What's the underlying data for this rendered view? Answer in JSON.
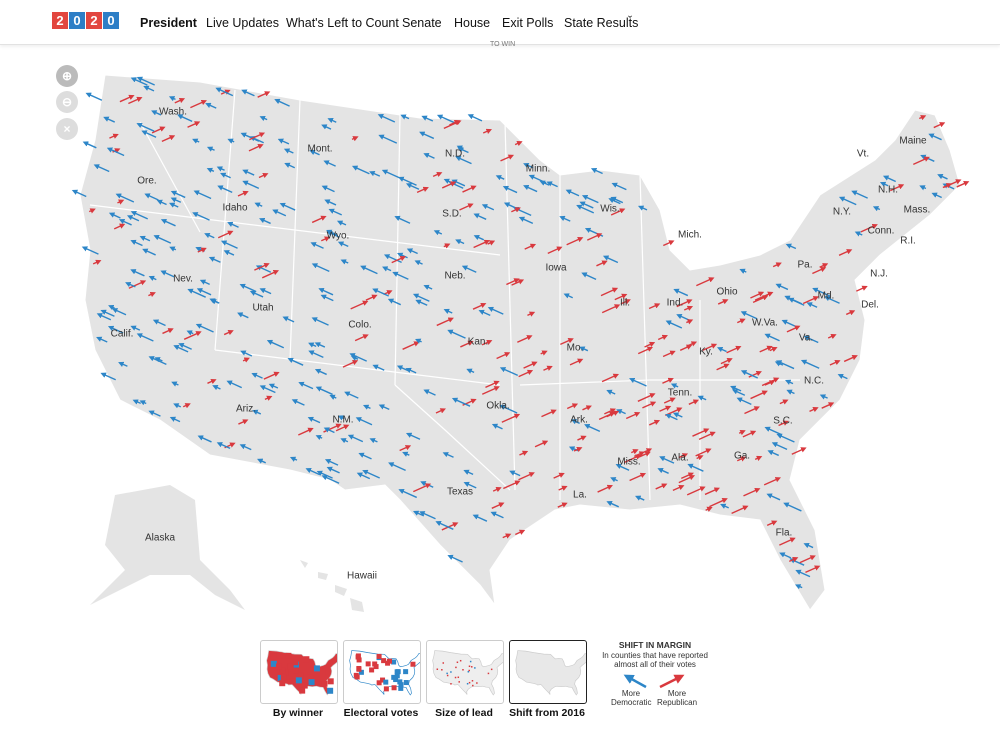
{
  "header": {
    "logo": [
      "2",
      "0",
      "2",
      "0"
    ],
    "nav": [
      "President",
      "Live Updates",
      "What's Left to Count",
      "Senate",
      "House",
      "Exit Polls",
      "State Results"
    ],
    "subtext": "TO WIN"
  },
  "map": {
    "states": [
      "Wash.",
      "Mont.",
      "N.D.",
      "Minn.",
      "Ore.",
      "Idaho",
      "Wyo.",
      "S.D.",
      "Wis.",
      "Mich.",
      "Vt.",
      "Maine",
      "N.H.",
      "Mass.",
      "N.Y.",
      "Conn.",
      "R.I.",
      "Nev.",
      "Utah",
      "Neb.",
      "Iowa",
      "Pa.",
      "N.J.",
      "Ill.",
      "Ind.",
      "Ohio",
      "Md.",
      "Del.",
      "Colo.",
      "Calif.",
      "Kan.",
      "Mo.",
      "W.Va.",
      "Va.",
      "Ky.",
      "N.C.",
      "Tenn.",
      "Okla.",
      "Ark.",
      "S.C.",
      "Ariz.",
      "N.M.",
      "Miss.",
      "Ala.",
      "Ga.",
      "Texas",
      "La.",
      "Fla.",
      "Alaska",
      "Hawaii"
    ]
  },
  "controls": {
    "views": [
      "By winner",
      "Electoral votes",
      "Size of lead",
      "Shift from 2016"
    ]
  },
  "legend": {
    "title": "SHIFT IN MARGIN",
    "note": "In counties that have reported almost all of their votes",
    "left": "More Democratic",
    "right": "More Republican"
  }
}
